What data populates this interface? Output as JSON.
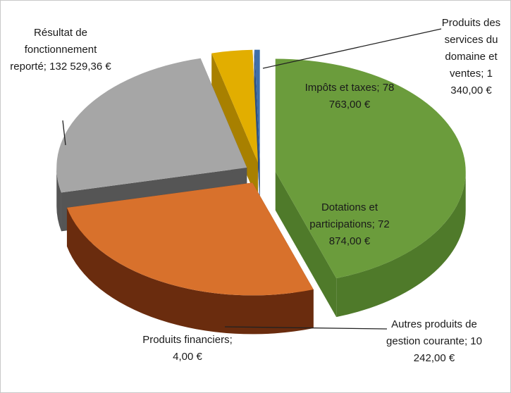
{
  "chart_data": {
    "type": "pie",
    "categories": [
      "Résultat de fonctionnement reporté",
      "Impôts et taxes",
      "Dotations et participations",
      "Autres produits de gestion courante",
      "Produits financiers",
      "Produits des services du domaine et ventes"
    ],
    "values": [
      132529.36,
      78763,
      72874,
      10242,
      4,
      1340
    ],
    "value_labels": [
      "132 529,36 €",
      "78 763,00 €",
      "72 874,00 €",
      "10 242,00 €",
      "4,00 €",
      "1 340,00 €"
    ],
    "separator": ";",
    "colors": [
      "#6b9c3c",
      "#d8712c",
      "#a6a6a6",
      "#e2ae00",
      "#3f6fa8",
      "#3f6fa8"
    ],
    "side_colors": [
      "#4f7a2a",
      "#6a2c0e",
      "#555555",
      "#a88000",
      "#2c5082",
      "#2c5082"
    ]
  }
}
